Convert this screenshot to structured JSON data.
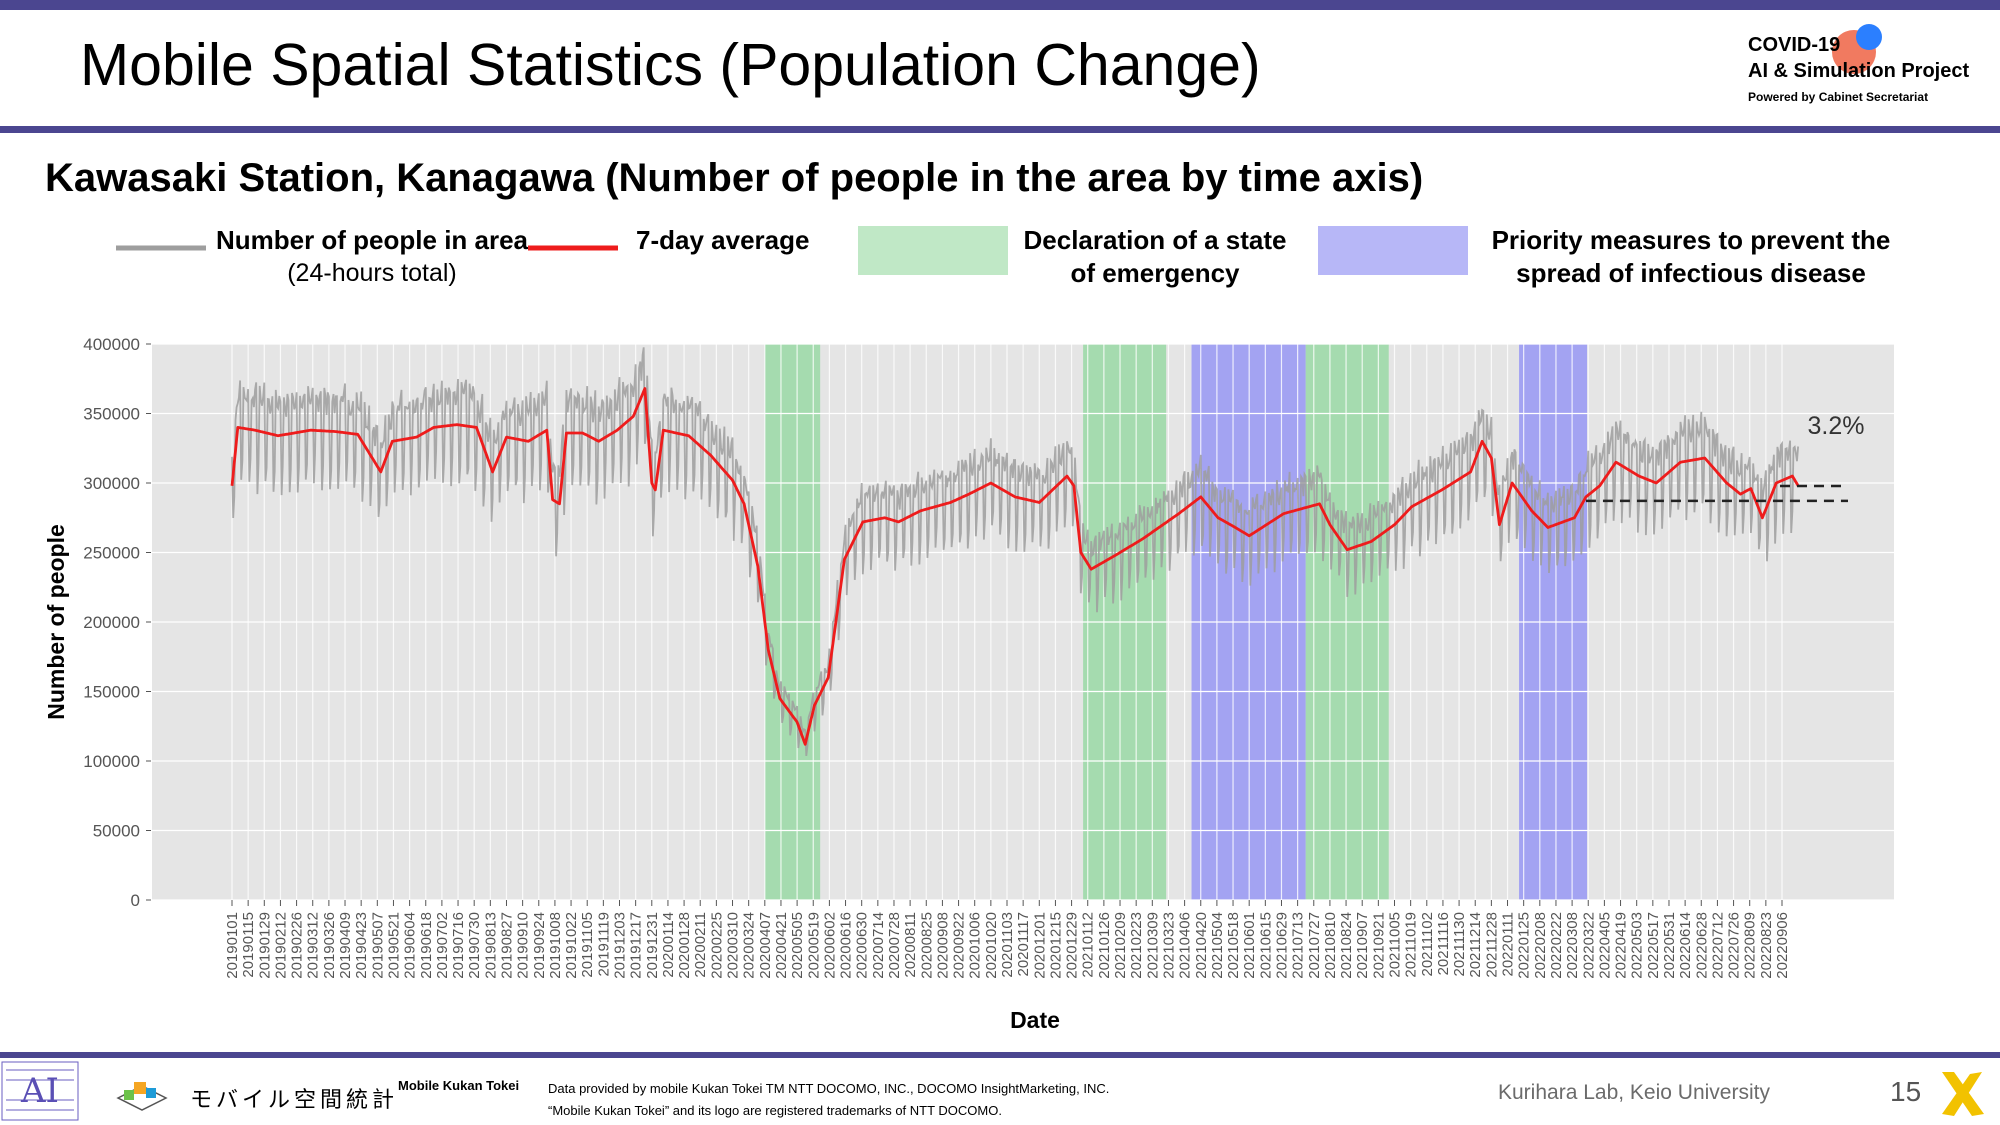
{
  "header": {
    "title": "Mobile Spatial Statistics (Population Change)",
    "logo_line1": "COVID-19",
    "logo_line2": "AI & Simulation Project",
    "logo_line3": "Powered by Cabinet Secretariat"
  },
  "subtitle": "Kawasaki Station, Kanagawa (Number of people in the area by time axis)",
  "legend": {
    "people_line1": "Number of people in area",
    "people_line2": "(24-hours total)",
    "avg": "7-day average",
    "emergency_line1": "Declaration of a state",
    "emergency_line2": "of emergency",
    "priority_line1": "Priority measures to prevent the",
    "priority_line2": "spread of infectious disease"
  },
  "colors": {
    "accent_bar": "#4b4690",
    "daily_line": "#9e9e9e",
    "avg_line": "#ee1c1c",
    "emergency": "#8fd79c",
    "priority": "#8c8cf5",
    "plot_bg": "#e5e5e5"
  },
  "chart_data": {
    "type": "line",
    "ylabel": "Number of people",
    "xlabel": "Date",
    "ylim": [
      0,
      400000
    ],
    "yticks": [
      "0",
      "50000",
      "100000",
      "150000",
      "200000",
      "250000",
      "300000",
      "350000",
      "400000"
    ],
    "grid": true,
    "xticks": [
      "20190101",
      "20190115",
      "20190129",
      "20190212",
      "20190226",
      "20190312",
      "20190326",
      "20190409",
      "20190423",
      "20190507",
      "20190521",
      "20190604",
      "20190618",
      "20190702",
      "20190716",
      "20190730",
      "20190813",
      "20190827",
      "20190910",
      "20190924",
      "20191008",
      "20191022",
      "20191105",
      "20191119",
      "20191203",
      "20191217",
      "20191231",
      "20200114",
      "20200128",
      "20200211",
      "20200225",
      "20200310",
      "20200324",
      "20200407",
      "20200421",
      "20200505",
      "20200519",
      "20200602",
      "20200616",
      "20200630",
      "20200714",
      "20200728",
      "20200811",
      "20200825",
      "20200908",
      "20200922",
      "20201006",
      "20201020",
      "20201103",
      "20201117",
      "20201201",
      "20201215",
      "20201229",
      "20210112",
      "20210126",
      "20210209",
      "20210223",
      "20210309",
      "20210323",
      "20210406",
      "20210420",
      "20210504",
      "20210518",
      "20210601",
      "20210615",
      "20210629",
      "20210713",
      "20210727",
      "20210810",
      "20210824",
      "20210907",
      "20210921",
      "20211005",
      "20211019",
      "20211102",
      "20211116",
      "20211130",
      "20211214",
      "20211228",
      "20220111",
      "20220125",
      "20220208",
      "20220222",
      "20220308",
      "20220322",
      "20220405",
      "20220419",
      "20220503",
      "20220517",
      "20220531",
      "20220614",
      "20220628",
      "20220712",
      "20220726",
      "20220809",
      "20220823",
      "20220906"
    ],
    "series": [
      {
        "name": "7-day average",
        "anchors": [
          [
            "20190101",
            298000
          ],
          [
            "20190106",
            340000
          ],
          [
            "20190121",
            338000
          ],
          [
            "20190210",
            334000
          ],
          [
            "20190310",
            338000
          ],
          [
            "20190401",
            337000
          ],
          [
            "20190420",
            335000
          ],
          [
            "20190510",
            308000
          ],
          [
            "20190520",
            330000
          ],
          [
            "20190610",
            333000
          ],
          [
            "20190625",
            340000
          ],
          [
            "20190715",
            342000
          ],
          [
            "20190801",
            340000
          ],
          [
            "20190815",
            308000
          ],
          [
            "20190827",
            333000
          ],
          [
            "20190915",
            330000
          ],
          [
            "20191001",
            338000
          ],
          [
            "20191006",
            288000
          ],
          [
            "20191012",
            285000
          ],
          [
            "20191018",
            336000
          ],
          [
            "20191101",
            336000
          ],
          [
            "20191115",
            330000
          ],
          [
            "20191201",
            338000
          ],
          [
            "20191215",
            348000
          ],
          [
            "20191225",
            368000
          ],
          [
            "20191231",
            300000
          ],
          [
            "20200103",
            295000
          ],
          [
            "20200110",
            338000
          ],
          [
            "20200201",
            334000
          ],
          [
            "20200220",
            320000
          ],
          [
            "20200310",
            302000
          ],
          [
            "20200320",
            285000
          ],
          [
            "20200401",
            240000
          ],
          [
            "20200410",
            180000
          ],
          [
            "20200420",
            145000
          ],
          [
            "20200505",
            128000
          ],
          [
            "20200512",
            112000
          ],
          [
            "20200520",
            140000
          ],
          [
            "20200601",
            160000
          ],
          [
            "20200615",
            245000
          ],
          [
            "20200701",
            272000
          ],
          [
            "20200720",
            275000
          ],
          [
            "20200801",
            272000
          ],
          [
            "20200820",
            280000
          ],
          [
            "20200915",
            286000
          ],
          [
            "20201001",
            292000
          ],
          [
            "20201020",
            300000
          ],
          [
            "20201110",
            290000
          ],
          [
            "20201201",
            286000
          ],
          [
            "20201225",
            305000
          ],
          [
            "20201231",
            298000
          ],
          [
            "20210106",
            250000
          ],
          [
            "20210115",
            238000
          ],
          [
            "20210205",
            248000
          ],
          [
            "20210301",
            260000
          ],
          [
            "20210401",
            278000
          ],
          [
            "20210420",
            290000
          ],
          [
            "20210505",
            275000
          ],
          [
            "20210520",
            268000
          ],
          [
            "20210601",
            262000
          ],
          [
            "20210701",
            278000
          ],
          [
            "20210801",
            285000
          ],
          [
            "20210810",
            270000
          ],
          [
            "20210825",
            252000
          ],
          [
            "20210915",
            258000
          ],
          [
            "20211005",
            270000
          ],
          [
            "20211020",
            283000
          ],
          [
            "20211115",
            295000
          ],
          [
            "20211210",
            308000
          ],
          [
            "20211220",
            330000
          ],
          [
            "20211228",
            318000
          ],
          [
            "20220104",
            270000
          ],
          [
            "20220115",
            300000
          ],
          [
            "20220201",
            280000
          ],
          [
            "20220215",
            268000
          ],
          [
            "20220310",
            275000
          ],
          [
            "20220320",
            290000
          ],
          [
            "20220401",
            298000
          ],
          [
            "20220415",
            315000
          ],
          [
            "20220505",
            305000
          ],
          [
            "20220520",
            300000
          ],
          [
            "20220610",
            315000
          ],
          [
            "20220701",
            318000
          ],
          [
            "20220720",
            300000
          ],
          [
            "20220801",
            292000
          ],
          [
            "20220810",
            296000
          ],
          [
            "20220820",
            275000
          ],
          [
            "20220901",
            300000
          ],
          [
            "20220915",
            305000
          ],
          [
            "20220920",
            298000
          ]
        ]
      }
    ],
    "shaded_periods": [
      {
        "type": "emergency",
        "start": "20200407",
        "end": "20200525"
      },
      {
        "type": "emergency",
        "start": "20210108",
        "end": "20210321"
      },
      {
        "type": "priority",
        "start": "20210412",
        "end": "20210720"
      },
      {
        "type": "emergency",
        "start": "20210720",
        "end": "20210930"
      },
      {
        "type": "priority",
        "start": "20220121",
        "end": "20220321"
      }
    ],
    "annotation": "3.2%"
  },
  "footer": {
    "kukan_jp": "モバイル空間統計",
    "brand": "Mobile Kukan Tokei",
    "credit_line1": "Data provided by mobile Kukan Tokei TM NTT DOCOMO, INC., DOCOMO InsightMarketing, INC.",
    "credit_line2": "“Mobile Kukan Tokei” and its logo are registered trademarks of NTT DOCOMO.",
    "lab": "Kurihara Lab, Keio University",
    "page": "15"
  }
}
